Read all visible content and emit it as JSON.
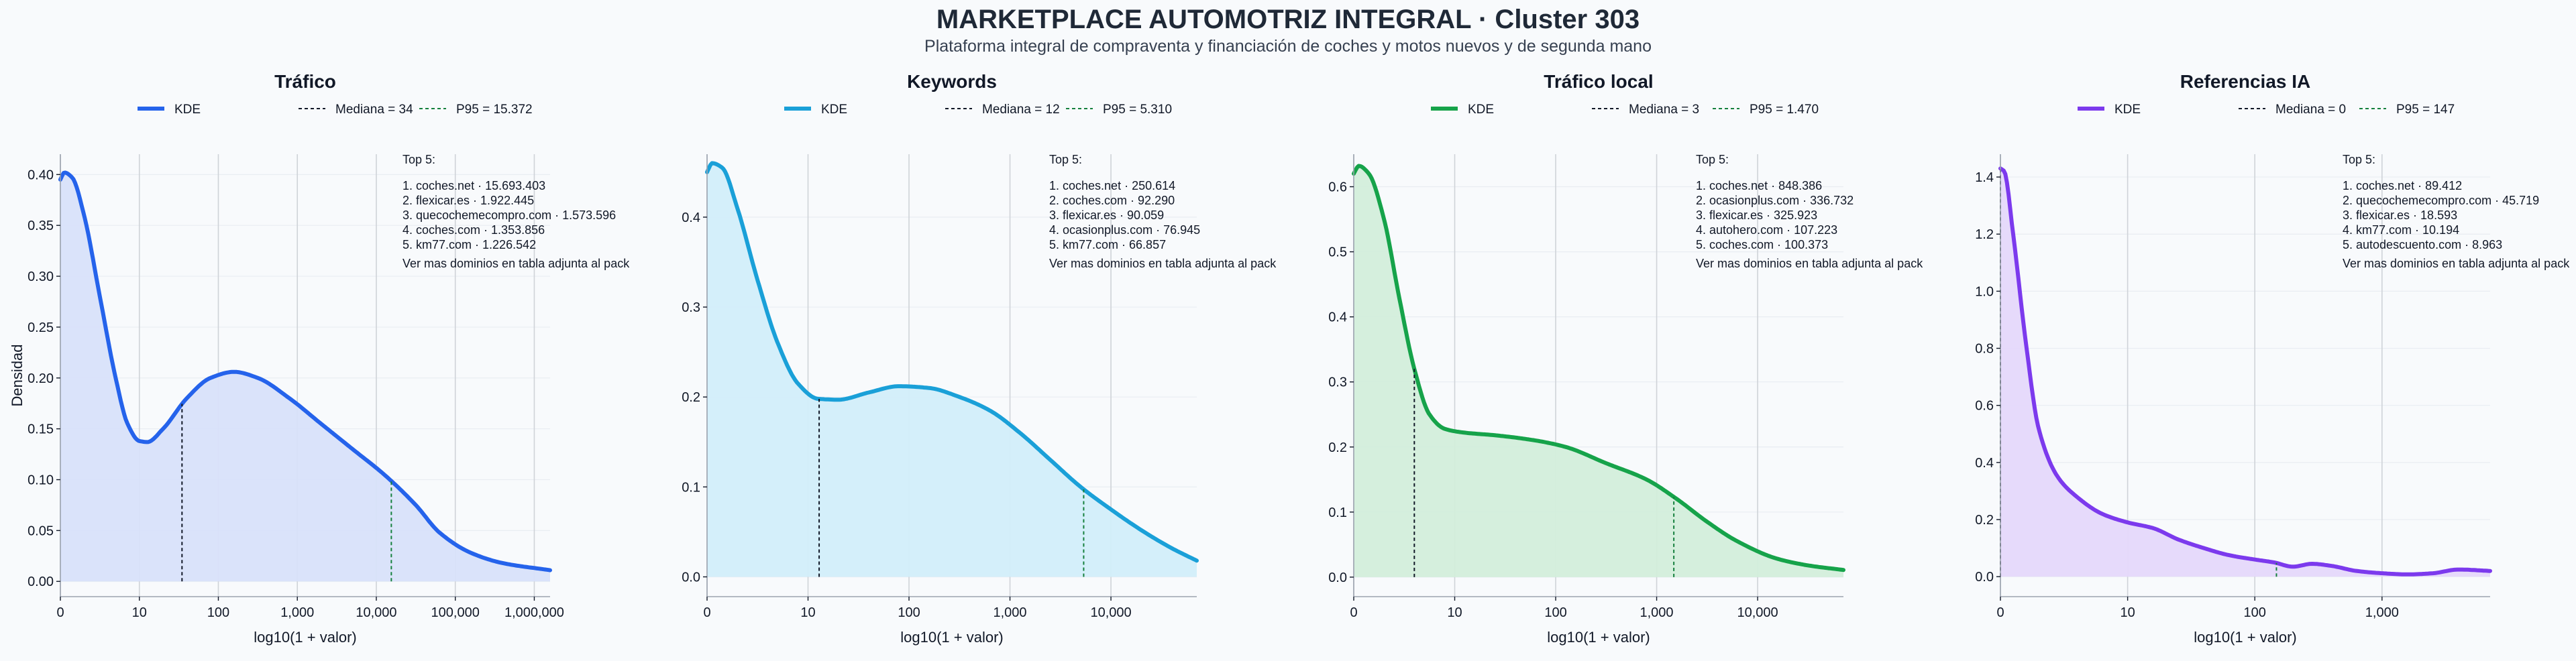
{
  "header": {
    "title": "MARKETPLACE AUTOMOTRIZ INTEGRAL · Cluster 303",
    "subtitle": "Plataforma integral de compraventa y financiación de coches y motos nuevos y de segunda mano"
  },
  "chart_data": [
    {
      "type": "area",
      "title": "Tráfico",
      "color": "#2563eb",
      "fill": "#d8e2fa",
      "xlabel": "log10(1 + valor)",
      "ylabel": "Densidad",
      "xlim": [
        0,
        6.2
      ],
      "ylim": [
        -0.015,
        0.42
      ],
      "x_ticks": [
        0,
        1,
        2,
        3,
        4,
        5,
        6
      ],
      "x_tick_labels": [
        "0",
        "10",
        "100",
        "1,000",
        "10,000",
        "100,000",
        "1,000,000"
      ],
      "y_ticks": [
        0.0,
        0.05,
        0.1,
        0.15,
        0.2,
        0.25,
        0.3,
        0.35,
        0.4
      ],
      "y_tick_labels": [
        "0.00",
        "0.05",
        "0.10",
        "0.15",
        "0.20",
        "0.25",
        "0.30",
        "0.35",
        "0.40"
      ],
      "kde": {
        "x": [
          0,
          0.05,
          0.15,
          0.3,
          0.5,
          0.7,
          0.85,
          1.0,
          1.1,
          1.3,
          1.6,
          1.9,
          2.2,
          2.5,
          2.9,
          3.3,
          3.7,
          4.1,
          4.5,
          4.8,
          5.2,
          5.6,
          6.2
        ],
        "y": [
          0.395,
          0.402,
          0.397,
          0.36,
          0.28,
          0.2,
          0.155,
          0.138,
          0.137,
          0.15,
          0.18,
          0.2,
          0.206,
          0.2,
          0.18,
          0.155,
          0.13,
          0.105,
          0.075,
          0.048,
          0.028,
          0.018,
          0.011
        ]
      },
      "legend": {
        "kde": "KDE",
        "median": "Mediana = 34",
        "p95": "P95 = 15.372"
      },
      "median_x": 1.54,
      "p95_x": 4.19,
      "top_title": "Top 5:",
      "top_items": [
        "1. coches.net · 15.693.403",
        "2. flexicar.es · 1.922.445",
        "3. quecochemecompro.com · 1.573.596",
        "4. coches.com · 1.353.856",
        "5. km77.com · 1.226.542"
      ],
      "top_footer": "Ver mas dominios en tabla adjunta al pack"
    },
    {
      "type": "area",
      "title": "Keywords",
      "color": "#1aa0d8",
      "fill": "#d2eefa",
      "xlabel": "log10(1 + valor)",
      "ylabel": "",
      "xlim": [
        0,
        4.85
      ],
      "ylim": [
        -0.022,
        0.47
      ],
      "x_ticks": [
        0,
        1,
        2,
        3,
        4
      ],
      "x_tick_labels": [
        "0",
        "10",
        "100",
        "1,000",
        "10,000"
      ],
      "y_ticks": [
        0.0,
        0.1,
        0.2,
        0.3,
        0.4
      ],
      "y_tick_labels": [
        "0.0",
        "0.1",
        "0.2",
        "0.3",
        "0.4"
      ],
      "kde": {
        "x": [
          0,
          0.05,
          0.15,
          0.3,
          0.5,
          0.7,
          0.9,
          1.1,
          1.3,
          1.6,
          1.9,
          2.2,
          2.5,
          2.8,
          3.1,
          3.4,
          3.7,
          4.0,
          4.3,
          4.6,
          4.85
        ],
        "y": [
          0.45,
          0.46,
          0.455,
          0.41,
          0.33,
          0.26,
          0.215,
          0.198,
          0.197,
          0.205,
          0.212,
          0.21,
          0.2,
          0.185,
          0.16,
          0.13,
          0.1,
          0.075,
          0.052,
          0.032,
          0.018
        ]
      },
      "legend": {
        "kde": "KDE",
        "median": "Mediana = 12",
        "p95": "P95 = 5.310"
      },
      "median_x": 1.11,
      "p95_x": 3.73,
      "top_title": "Top 5:",
      "top_items": [
        "1. coches.net · 250.614",
        "2. coches.com · 92.290",
        "3. flexicar.es · 90.059",
        "4. ocasionplus.com · 76.945",
        "5. km77.com · 66.857"
      ],
      "top_footer": "Ver mas dominios en tabla adjunta al pack"
    },
    {
      "type": "area",
      "title": "Tráfico local",
      "color": "#16a34a",
      "fill": "#d3eedb",
      "xlabel": "log10(1 + valor)",
      "ylabel": "",
      "xlim": [
        0,
        4.85
      ],
      "ylim": [
        -0.03,
        0.65
      ],
      "x_ticks": [
        0,
        1,
        2,
        3,
        4
      ],
      "x_tick_labels": [
        "0",
        "10",
        "100",
        "1,000",
        "10,000"
      ],
      "y_ticks": [
        0.0,
        0.1,
        0.2,
        0.3,
        0.4,
        0.5,
        0.6
      ],
      "y_tick_labels": [
        "0.0",
        "0.1",
        "0.2",
        "0.3",
        "0.4",
        "0.5",
        "0.6"
      ],
      "kde": {
        "x": [
          0,
          0.05,
          0.15,
          0.3,
          0.45,
          0.6,
          0.75,
          0.9,
          1.1,
          1.4,
          1.8,
          2.1,
          2.5,
          2.9,
          3.2,
          3.5,
          3.8,
          4.2,
          4.5,
          4.85
        ],
        "y": [
          0.62,
          0.632,
          0.62,
          0.55,
          0.43,
          0.32,
          0.25,
          0.228,
          0.222,
          0.218,
          0.21,
          0.2,
          0.175,
          0.15,
          0.12,
          0.085,
          0.055,
          0.028,
          0.018,
          0.011
        ]
      },
      "legend": {
        "kde": "KDE",
        "median": "Mediana = 3",
        "p95": "P95 = 1.470"
      },
      "median_x": 0.6,
      "p95_x": 3.17,
      "top_title": "Top 5:",
      "top_items": [
        "1. coches.net · 848.386",
        "2. ocasionplus.com · 336.732",
        "3. flexicar.es · 325.923",
        "4. autohero.com · 107.223",
        "5. coches.com · 100.373"
      ],
      "top_footer": "Ver mas dominios en tabla adjunta al pack"
    },
    {
      "type": "area",
      "title": "Referencias IA",
      "color": "#7c3aed",
      "fill": "#e5d8fb",
      "xlabel": "log10(1 + valor)",
      "ylabel": "",
      "xlim": [
        0,
        3.85
      ],
      "ylim": [
        -0.07,
        1.48
      ],
      "x_ticks": [
        0,
        1,
        2,
        3
      ],
      "x_tick_labels": [
        "0",
        "10",
        "100",
        "1,000"
      ],
      "y_ticks": [
        0.0,
        0.2,
        0.4,
        0.6,
        0.8,
        1.0,
        1.2,
        1.4
      ],
      "y_tick_labels": [
        "0.0",
        "0.2",
        "0.4",
        "0.6",
        "0.8",
        "1.0",
        "1.2",
        "1.4"
      ],
      "kde": {
        "x": [
          0,
          0.03,
          0.1,
          0.2,
          0.3,
          0.45,
          0.6,
          0.8,
          1.0,
          1.2,
          1.4,
          1.6,
          1.8,
          2.0,
          2.15,
          2.3,
          2.45,
          2.6,
          2.8,
          3.0,
          3.2,
          3.4,
          3.6,
          3.85
        ],
        "y": [
          1.43,
          1.42,
          1.2,
          0.82,
          0.52,
          0.35,
          0.28,
          0.22,
          0.19,
          0.17,
          0.13,
          0.1,
          0.075,
          0.06,
          0.05,
          0.035,
          0.045,
          0.038,
          0.02,
          0.012,
          0.008,
          0.012,
          0.025,
          0.02
        ]
      },
      "legend": {
        "kde": "KDE",
        "median": "Mediana = 0",
        "p95": "P95 = 147"
      },
      "median_x": 0,
      "p95_x": 2.17,
      "top_title": "Top 5:",
      "top_items": [
        "1. coches.net · 89.412",
        "2. quecochemecompro.com · 45.719",
        "3. flexicar.es · 18.593",
        "4. km77.com · 10.194",
        "5. autodescuento.com · 8.963"
      ],
      "top_footer": "Ver mas dominios en tabla adjunta al pack"
    }
  ]
}
